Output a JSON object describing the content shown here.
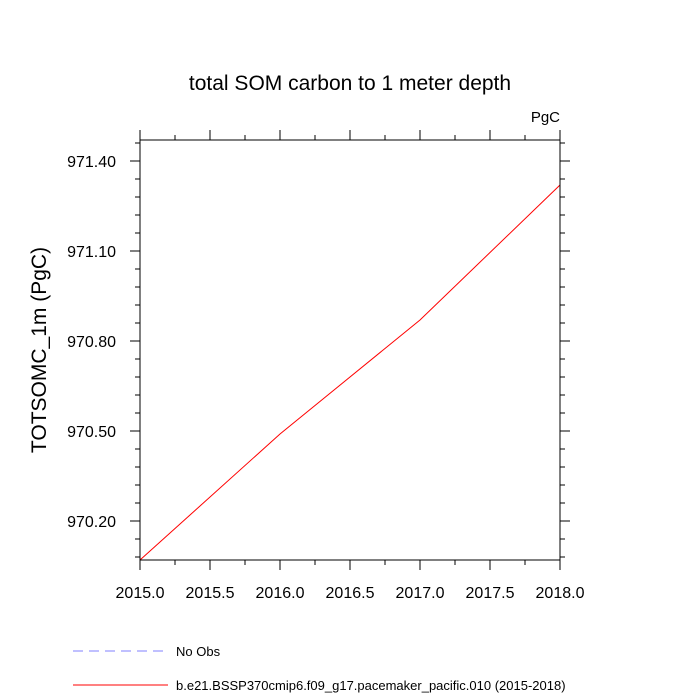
{
  "chart_data": {
    "type": "line",
    "title": "total SOM carbon to 1 meter depth",
    "units_label": "PgC",
    "xlabel": "",
    "ylabel": "TOTSOMC_1m  (PgC)",
    "xlim": [
      2015.0,
      2018.0
    ],
    "ylim": [
      970.07,
      971.47
    ],
    "x_ticks": [
      2015.0,
      2015.5,
      2016.0,
      2016.5,
      2017.0,
      2017.5,
      2018.0
    ],
    "x_tick_labels": [
      "2015.0",
      "2015.5",
      "2016.0",
      "2016.5",
      "2017.0",
      "2017.5",
      "2018.0"
    ],
    "y_ticks": [
      970.2,
      970.5,
      970.8,
      971.1,
      971.4
    ],
    "y_tick_labels": [
      "970.20",
      "970.50",
      "970.80",
      "971.10",
      "971.40"
    ],
    "grid": false,
    "legend_position": "bottom",
    "series": [
      {
        "name": "b.e21.BSSP370cmip6.f09_g17.pacemaker_pacific.010 (2015-2018)",
        "color": "#ff0000",
        "dash": "solid",
        "x": [
          2015.0,
          2016.0,
          2017.0,
          2018.0
        ],
        "y": [
          970.07,
          970.49,
          970.87,
          971.32
        ]
      },
      {
        "name": "No Obs",
        "color": "#8080ff",
        "dash": "dashed",
        "x": [],
        "y": []
      }
    ]
  }
}
